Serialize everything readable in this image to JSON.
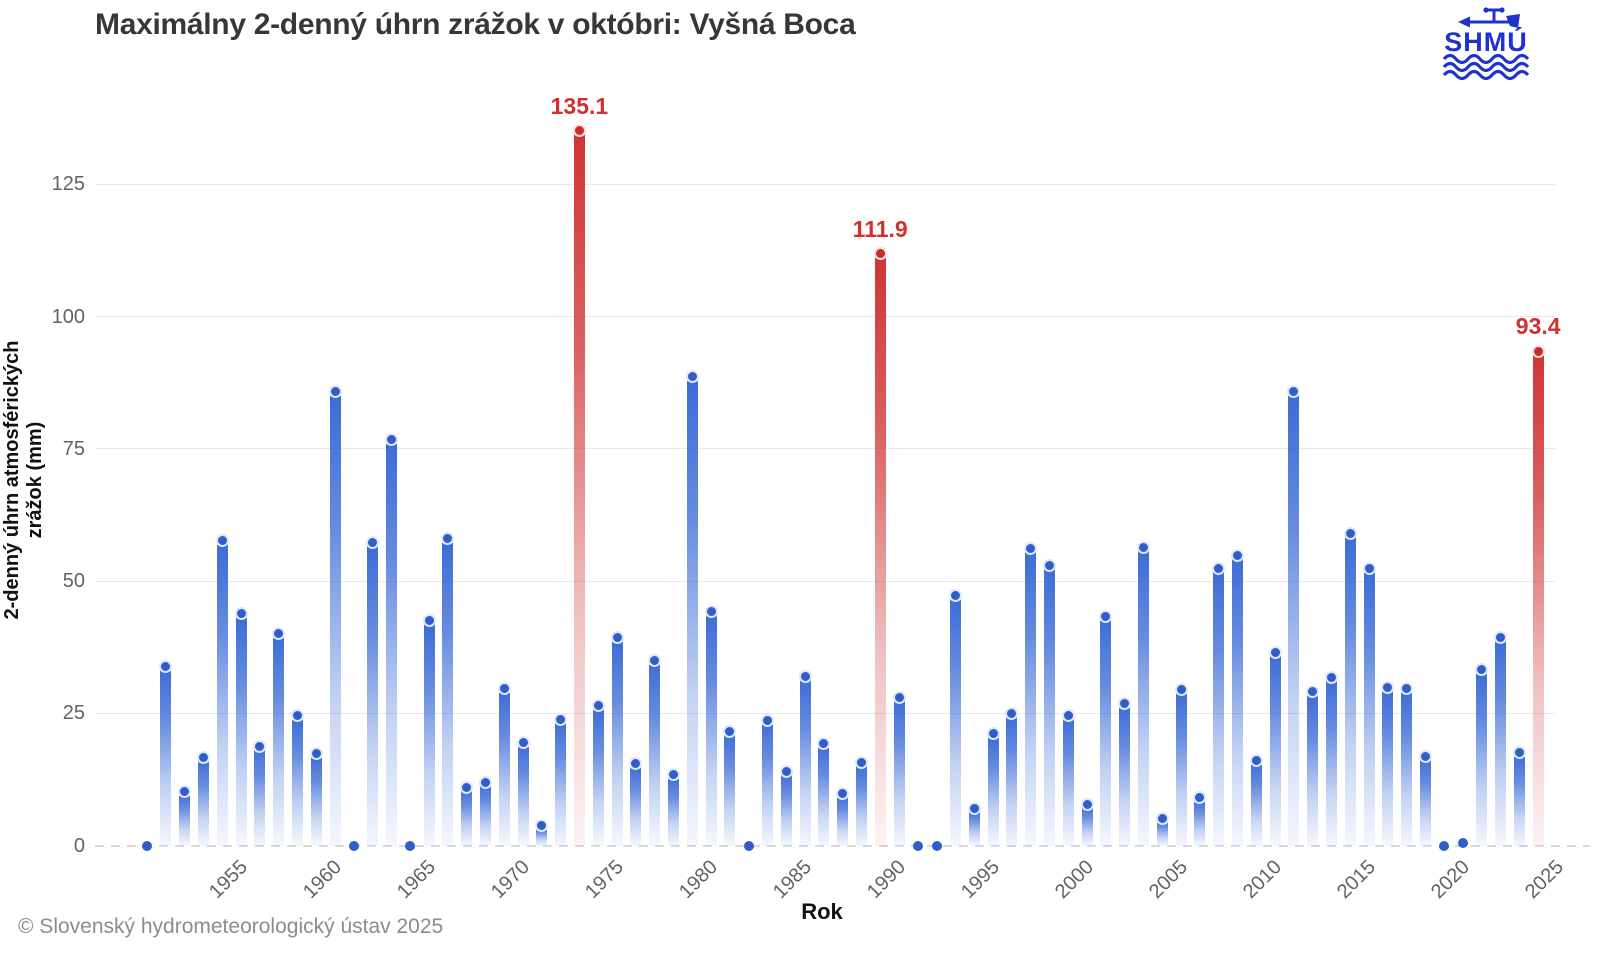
{
  "logo": {
    "text": "SHMÚ"
  },
  "footer": "© Slovenský hydrometeorologický ústav 2025",
  "chart_data": {
    "type": "bar",
    "title": "Maximálny 2-denný úhrn zrážok v októbri: Vyšná Boca",
    "xlabel": "Rok",
    "ylabel": "2-denný úhrn atmosférických zrážok (mm)",
    "ylim": [
      0,
      140
    ],
    "grid": true,
    "yticks": [
      0,
      25,
      50,
      75,
      100,
      125
    ],
    "xticks": [
      1955,
      1960,
      1965,
      1970,
      1975,
      1980,
      1985,
      1990,
      1995,
      2000,
      2005,
      2010,
      2015,
      2020,
      2025
    ],
    "years": [
      1951,
      1952,
      1953,
      1954,
      1955,
      1956,
      1957,
      1958,
      1959,
      1960,
      1961,
      1962,
      1963,
      1964,
      1965,
      1966,
      1967,
      1968,
      1969,
      1970,
      1971,
      1972,
      1973,
      1974,
      1975,
      1976,
      1977,
      1978,
      1979,
      1980,
      1981,
      1982,
      1983,
      1984,
      1985,
      1986,
      1987,
      1988,
      1989,
      1990,
      1991,
      1992,
      1993,
      1994,
      1995,
      1996,
      1997,
      1998,
      1999,
      2000,
      2001,
      2002,
      2003,
      2004,
      2005,
      2006,
      2007,
      2008,
      2009,
      2010,
      2011,
      2012,
      2013,
      2014,
      2015,
      2016,
      2017,
      2018,
      2019,
      2020,
      2021,
      2022,
      2023,
      2024,
      2025
    ],
    "values": [
      0,
      33.8,
      10.2,
      16.6,
      57.6,
      43.8,
      18.8,
      40,
      24.5,
      17.3,
      85.8,
      0,
      57.3,
      76.7,
      0,
      42.5,
      58,
      11,
      12,
      29.6,
      19.4,
      3.7,
      23.9,
      135.1,
      26.4,
      39.3,
      15.5,
      34.9,
      13.4,
      88.6,
      44.2,
      21.6,
      0,
      23.7,
      14,
      31.9,
      19.2,
      9.8,
      15.7,
      111.9,
      28,
      0,
      0,
      47.2,
      7,
      21.1,
      25,
      56.2,
      53,
      24.5,
      7.8,
      43.3,
      26.8,
      56.4,
      5.1,
      29.4,
      9,
      52.4,
      54.9,
      16,
      36.5,
      85.8,
      29.1,
      31.8,
      59,
      52.4,
      29.9,
      29.6,
      16.9,
      0,
      0.4,
      33.2,
      39.3,
      17.5,
      93.4
    ],
    "highlights": [
      {
        "year": 1974,
        "label": "135.1"
      },
      {
        "year": 1990,
        "label": "111.9"
      },
      {
        "year": 2025,
        "label": "93.4"
      }
    ],
    "colors": {
      "bar": "#3b6bd6",
      "marker": "#2f5ec9",
      "highlight_bar": "#d03434",
      "highlight_label": "#d32f2f",
      "logo_blue": "#1e33cc"
    }
  }
}
